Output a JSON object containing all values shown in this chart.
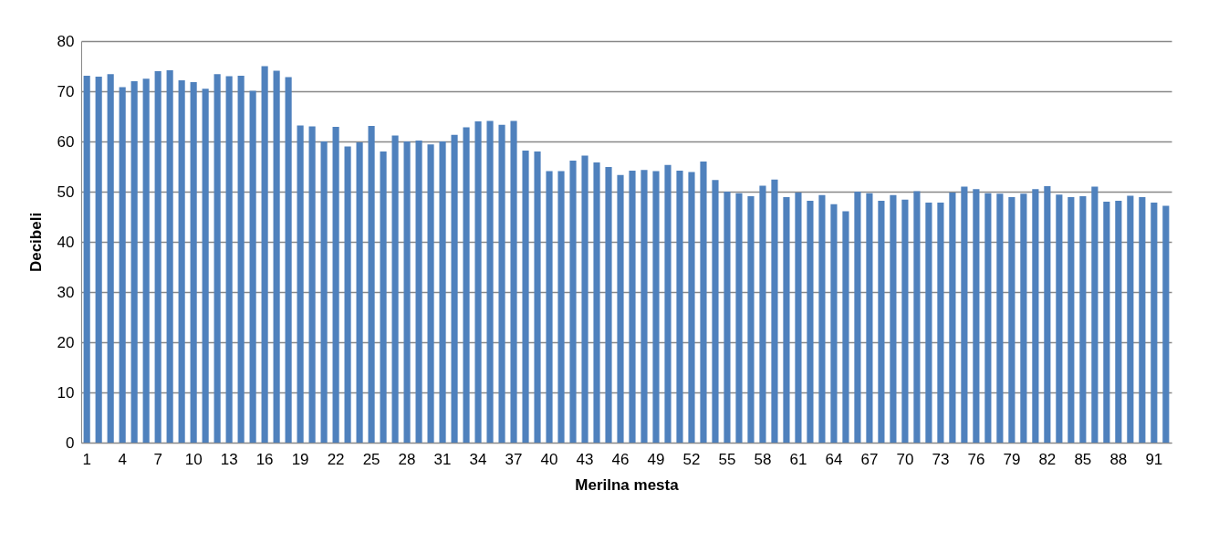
{
  "chart_data": {
    "type": "bar",
    "xlabel": "Merilna mesta",
    "ylabel": "Decibeli",
    "categories": [
      "1",
      null,
      null,
      "4",
      null,
      null,
      "7",
      null,
      null,
      "10",
      null,
      null,
      "13",
      null,
      null,
      "16",
      null,
      null,
      "19",
      null,
      null,
      "22",
      null,
      null,
      "25",
      null,
      null,
      "28",
      null,
      null,
      "31",
      null,
      null,
      "34",
      null,
      null,
      "37",
      null,
      null,
      "40",
      null,
      null,
      "43",
      null,
      null,
      "46",
      null,
      null,
      "49",
      null,
      null,
      "52",
      null,
      null,
      "55",
      null,
      null,
      "58",
      null,
      null,
      "61",
      null,
      null,
      "64",
      null,
      null,
      "67",
      null,
      null,
      "70",
      null,
      null,
      "73",
      null,
      null,
      "76",
      null,
      null,
      "79",
      null,
      null,
      "82",
      null,
      null,
      "85",
      null,
      null,
      "88",
      null,
      null,
      "91",
      null
    ],
    "series": [
      {
        "color": "#4f81bd",
        "values": [
          73.1,
          72.9,
          73.4,
          70.8,
          72,
          72.5,
          74,
          74.2,
          72.2,
          71.8,
          70.5,
          73.4,
          73,
          73.1,
          70.1,
          75,
          74.1,
          72.8,
          63.2,
          63,
          60,
          62.9,
          59,
          59.8,
          63.1,
          58,
          61.2,
          60,
          60.2,
          59.4,
          60,
          61.3,
          62.8,
          64,
          64.1,
          63.3,
          64.1,
          58.2,
          58,
          54.1,
          54.1,
          56.2,
          57.2,
          55.8,
          54.9,
          53.3,
          54.2,
          54.3,
          54.1,
          55.3,
          54.2,
          53.9,
          56,
          52.3,
          50,
          49.7,
          49.1,
          51.2,
          52.4,
          48.9,
          49.8,
          48.2,
          49.3,
          47.5,
          46.1,
          50,
          49.7,
          48.2,
          49.3,
          48.4,
          50.1,
          47.8,
          47.8,
          49.8,
          51,
          50.5,
          49.7,
          49.6,
          48.9,
          49.6,
          50.5,
          51.1,
          49.4,
          48.9,
          49.1,
          51,
          48,
          48.2,
          49.2,
          48.9,
          47.8,
          47.2
        ]
      }
    ],
    "ylim": [
      0,
      80
    ],
    "yticks": [
      0,
      10,
      20,
      30,
      40,
      50,
      60,
      70,
      80
    ],
    "grid": "y",
    "legend": false
  }
}
